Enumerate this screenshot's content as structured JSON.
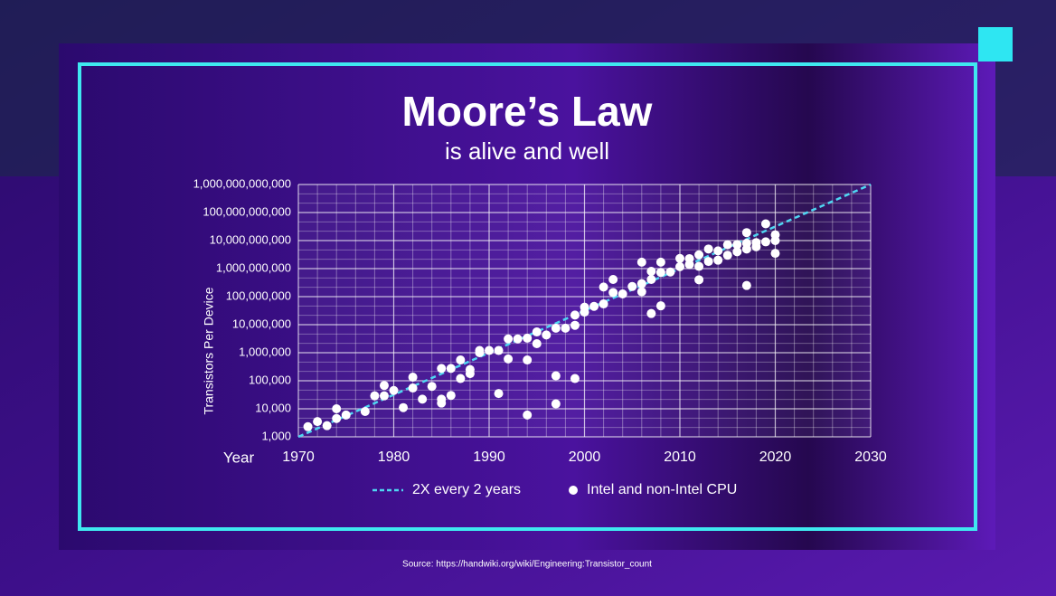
{
  "chart_data": {
    "type": "scatter",
    "title": "Moore’s Law",
    "subtitle": "is alive and well",
    "x_label": "Year",
    "y_label": "Transistors Per Device",
    "source": "Source: https://handwiki.org/wiki/Engineering:Transistor_count",
    "log_scale_y": true,
    "grid": true,
    "xlim": [
      1970,
      2030
    ],
    "xticks": [
      1970,
      1980,
      1990,
      2000,
      2010,
      2020,
      2030
    ],
    "ylim": [
      1000,
      1000000000000
    ],
    "yticks": [
      {
        "value": 1000,
        "label": "1,000"
      },
      {
        "value": 10000,
        "label": "10,000"
      },
      {
        "value": 100000,
        "label": "100,000"
      },
      {
        "value": 1000000,
        "label": "1,000,000"
      },
      {
        "value": 10000000,
        "label": "10,000,000"
      },
      {
        "value": 100000000,
        "label": "100,000,000"
      },
      {
        "value": 1000000000,
        "label": "1,000,000,000"
      },
      {
        "value": 10000000000,
        "label": "10,000,000,000"
      },
      {
        "value": 100000000000,
        "label": "100,000,000,000"
      },
      {
        "value": 1000000000000,
        "label": "1,000,000,000,000"
      }
    ],
    "series": [
      {
        "name": "2X every 2 years",
        "style": "dashed-line",
        "color": "#4fd6f2",
        "x": [
          1970,
          2030
        ],
        "values": [
          1000,
          1000000000000
        ]
      },
      {
        "name": "Intel and non-Intel CPU",
        "style": "points",
        "color": "#ffffff",
        "x": [
          1971,
          1972,
          1973,
          1974,
          1974,
          1975,
          1977,
          1978,
          1979,
          1979,
          1980,
          1981,
          1982,
          1982,
          1983,
          1984,
          1985,
          1985,
          1985,
          1986,
          1986,
          1987,
          1987,
          1988,
          1988,
          1989,
          1989,
          1990,
          1991,
          1991,
          1992,
          1992,
          1993,
          1994,
          1994,
          1994,
          1995,
          1995,
          1996,
          1997,
          1997,
          1997,
          1998,
          1999,
          1999,
          1999,
          2000,
          2000,
          2001,
          2002,
          2002,
          2003,
          2003,
          2004,
          2005,
          2006,
          2006,
          2006,
          2007,
          2007,
          2007,
          2008,
          2008,
          2008,
          2009,
          2010,
          2010,
          2011,
          2011,
          2012,
          2012,
          2012,
          2013,
          2013,
          2014,
          2014,
          2015,
          2015,
          2016,
          2016,
          2017,
          2017,
          2017,
          2017,
          2018,
          2018,
          2019,
          2019,
          2020,
          2020,
          2020
        ],
        "values": [
          2300,
          3500,
          2500,
          10000,
          4500,
          6000,
          8000,
          29000,
          29000,
          68000,
          45000,
          11000,
          134000,
          55000,
          22000,
          63000,
          275000,
          22000,
          16000,
          275000,
          30000,
          120000,
          550000,
          250000,
          180000,
          1200000,
          1000000,
          1200000,
          35000,
          1200000,
          3100000,
          600000,
          3100000,
          6000,
          550000,
          3300000,
          5500000,
          2100000,
          4300000,
          7500000,
          150000,
          15000,
          7500000,
          9500000,
          120000,
          22000000,
          42000000,
          28000000,
          45000000,
          220000000,
          55000000,
          410000000,
          140000000,
          125000000,
          230000000,
          1700000000,
          290000000,
          150000000,
          410000000,
          25000000,
          800000000,
          1700000000,
          47000000,
          730000000,
          760000000,
          1170000000,
          2300000000,
          2270000000,
          1400000000,
          3100000000,
          1200000000,
          400000000,
          5000000000,
          1800000000,
          4300000000,
          2000000000,
          7100000000,
          3000000000,
          7200000000,
          4000000000,
          19200000000,
          250000000,
          8000000000,
          5000000000,
          8500000000,
          6000000000,
          39500000000,
          9000000000,
          16000000000,
          3500000000,
          10000000000
        ]
      }
    ]
  }
}
